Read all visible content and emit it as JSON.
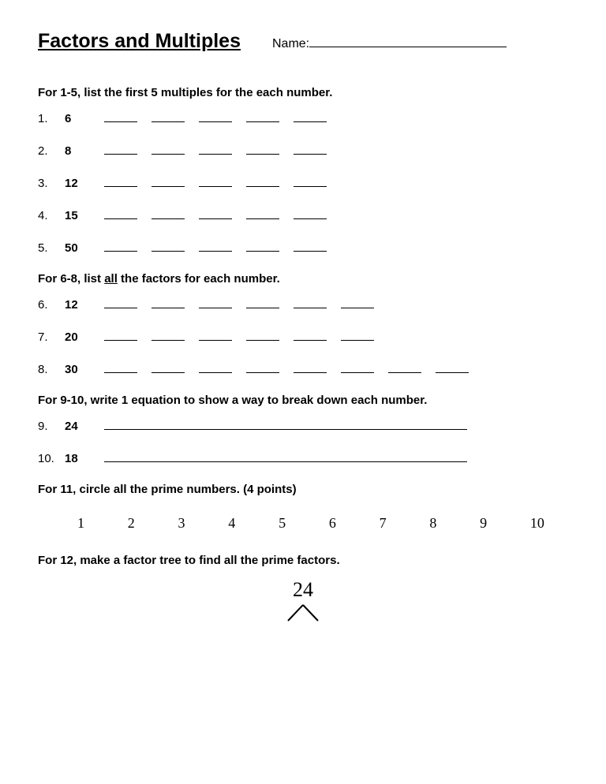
{
  "title": "Factors and Multiples",
  "name_label": "Name:",
  "section1": {
    "instr": "For 1-5, list the first 5 multiples for the each number.",
    "items": [
      {
        "n": "1.",
        "v": "6",
        "blanks": 5
      },
      {
        "n": "2.",
        "v": "8",
        "blanks": 5
      },
      {
        "n": "3.",
        "v": "12",
        "blanks": 5
      },
      {
        "n": "4.",
        "v": "15",
        "blanks": 5
      },
      {
        "n": "5.",
        "v": "50",
        "blanks": 5
      }
    ]
  },
  "section2": {
    "instr_pre": "For 6-8, list ",
    "instr_ul": "all",
    "instr_post": " the factors for each number.",
    "items": [
      {
        "n": "6.",
        "v": "12",
        "blanks": 6
      },
      {
        "n": "7.",
        "v": "20",
        "blanks": 6
      },
      {
        "n": "8.",
        "v": "30",
        "blanks": 8
      }
    ]
  },
  "section3": {
    "instr": "For 9-10, write 1 equation to show a way to break down each number.",
    "items": [
      {
        "n": "9.",
        "v": "24"
      },
      {
        "n": "10.",
        "v": "18"
      }
    ]
  },
  "section4": {
    "instr": "For 11, circle all the prime numbers. (4 points)",
    "numbers": [
      "1",
      "2",
      "3",
      "4",
      "5",
      "6",
      "7",
      "8",
      "9",
      "10"
    ]
  },
  "section5": {
    "instr": "For 12, make a factor tree to find all the prime factors.",
    "root": "24"
  }
}
